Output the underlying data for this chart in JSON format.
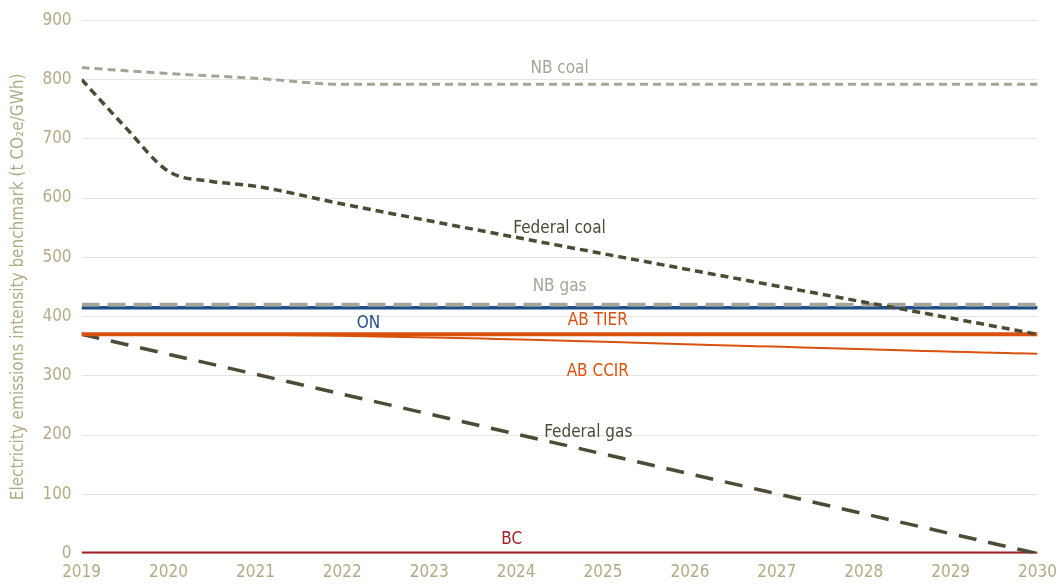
{
  "chart_data": {
    "type": "line",
    "ylabel": "Electricity emissions intensity benchmark (t CO₂e/GWh)",
    "xlim": [
      2019,
      2030
    ],
    "xticks": [
      2019,
      2020,
      2021,
      2022,
      2023,
      2024,
      2025,
      2026,
      2027,
      2028,
      2029,
      2030
    ],
    "ylim": [
      0,
      900
    ],
    "yticks": [
      0,
      100,
      200,
      300,
      400,
      500,
      600,
      700,
      800,
      900
    ],
    "grid": "y",
    "legend": false,
    "marker": "none",
    "series": [
      {
        "name": "NB coal",
        "color": "#a5a496",
        "line_style": "dashed",
        "x": [
          2019,
          2020,
          2021,
          2022,
          2023,
          2030
        ],
        "values": [
          820,
          810,
          802,
          792,
          792,
          792
        ]
      },
      {
        "name": "Federal coal",
        "color": "#4d4a35",
        "line_style": "dashed",
        "x": [
          2019,
          2019.5,
          2020,
          2020.5,
          2021,
          2022,
          2030
        ],
        "values": [
          800,
          720,
          645,
          628,
          620,
          590,
          370
        ]
      },
      {
        "name": "NB gas",
        "color": "#a5a496",
        "line_style": "dashed",
        "x": [
          2019,
          2030
        ],
        "values": [
          420,
          420
        ]
      },
      {
        "name": "ON",
        "color": "#1f4e8c",
        "line_style": "solid",
        "x": [
          2019,
          2030
        ],
        "values": [
          415,
          415
        ]
      },
      {
        "name": "AB TIER",
        "color": "#d9520f",
        "line_style": "solid",
        "x": [
          2019,
          2030
        ],
        "values": [
          370,
          370
        ]
      },
      {
        "name": "AB CCIR",
        "color": "#d9520f",
        "line_style": "solid",
        "x": [
          2019,
          2020,
          2030
        ],
        "values": [
          370,
          370,
          337
        ]
      },
      {
        "name": "Federal gas",
        "color": "#4d4a35",
        "line_style": "dashed",
        "x": [
          2019,
          2030
        ],
        "values": [
          370,
          0
        ]
      },
      {
        "name": "BC",
        "color": "#a3202a",
        "line_style": "solid",
        "x": [
          2019,
          2030
        ],
        "values": [
          0,
          0
        ]
      }
    ]
  }
}
